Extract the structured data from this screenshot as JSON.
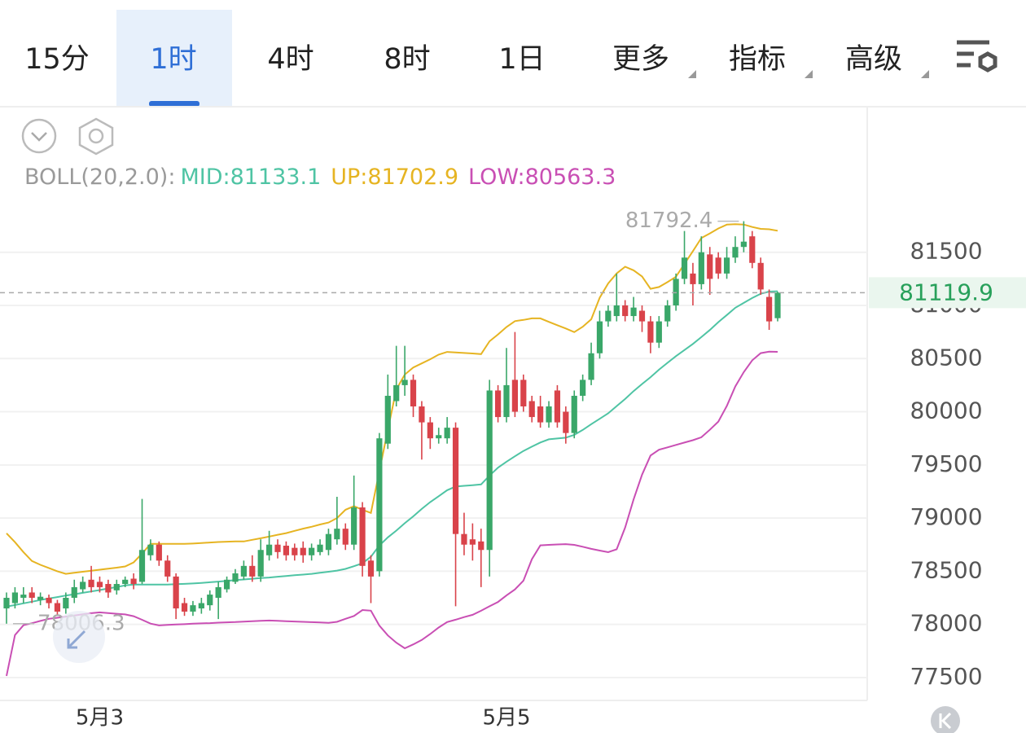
{
  "tabs": [
    {
      "label": "15分"
    },
    {
      "label": "1时",
      "active": true
    },
    {
      "label": "4时"
    },
    {
      "label": "8时"
    },
    {
      "label": "1日"
    },
    {
      "label": "更多",
      "dropdown": true
    },
    {
      "label": "指标",
      "dropdown": true
    },
    {
      "label": "高级",
      "dropdown": true
    }
  ],
  "chart_data": {
    "type": "candlestick",
    "indicator": "BOLL(20,2.0):",
    "up_color": "#3aa769",
    "down_color": "#d9434a",
    "grid": true,
    "ylim": [
      77300,
      81950
    ],
    "yticks": [
      77500,
      78000,
      78500,
      79000,
      79500,
      80000,
      80500,
      81000,
      81500
    ],
    "categories": [
      null,
      null,
      null,
      null,
      null,
      null,
      null,
      null,
      null,
      null,
      null,
      "5月3",
      null,
      null,
      null,
      null,
      null,
      null,
      null,
      null,
      null,
      null,
      null,
      null,
      null,
      null,
      null,
      null,
      null,
      null,
      null,
      null,
      null,
      null,
      null,
      null,
      null,
      null,
      null,
      null,
      null,
      null,
      null,
      null,
      null,
      null,
      null,
      null,
      null,
      null,
      null,
      null,
      null,
      null,
      null,
      null,
      null,
      null,
      null,
      "5月5",
      null,
      null,
      null,
      null,
      null,
      null,
      null,
      null,
      null,
      null,
      null,
      null,
      null,
      null,
      null,
      null,
      null,
      null,
      null,
      null,
      null,
      null,
      null,
      null,
      null,
      null,
      null,
      null,
      null,
      null,
      null,
      null
    ],
    "open": [
      78150,
      78200,
      78250,
      78300,
      78230,
      78250,
      78200,
      78150,
      78250,
      78330,
      78420,
      78400,
      78380,
      78320,
      78380,
      78430,
      78400,
      78650,
      78750,
      78600,
      78450,
      78200,
      78120,
      78150,
      78180,
      78250,
      78330,
      78400,
      78450,
      78550,
      78450,
      78650,
      78750,
      78740,
      78720,
      78720,
      78650,
      78680,
      78700,
      78800,
      78900,
      78750,
      79100,
      78600,
      78500,
      79700,
      80100,
      80250,
      80300,
      80050,
      79900,
      79750,
      79750,
      79850,
      78850,
      78800,
      78780,
      78700,
      80200,
      79950,
      80300,
      80300,
      80100,
      80050,
      79900,
      80200,
      80000,
      79800,
      80150,
      80300,
      80550,
      80850,
      80900,
      81000,
      80900,
      80950,
      80850,
      80650,
      80850,
      81000,
      81250,
      81300,
      81200,
      81480,
      81450,
      81300,
      81450,
      81550,
      81650,
      81400,
      81080,
      80880
    ],
    "high": [
      78300,
      78350,
      78350,
      78350,
      78300,
      78280,
      78230,
      78300,
      78420,
      78450,
      78550,
      78450,
      78420,
      78420,
      78450,
      78480,
      79180,
      78800,
      78780,
      78650,
      78480,
      78250,
      78220,
      78250,
      78320,
      78400,
      78450,
      78520,
      78600,
      78650,
      78800,
      78880,
      78800,
      78780,
      78760,
      78780,
      78760,
      78800,
      78900,
      79200,
      78950,
      79400,
      79150,
      78650,
      79800,
      80350,
      80620,
      80620,
      80350,
      80100,
      79950,
      79850,
      79950,
      79900,
      79050,
      78950,
      78900,
      80300,
      80250,
      80600,
      80750,
      80350,
      80150,
      80150,
      80100,
      80250,
      80050,
      80200,
      80350,
      80650,
      80950,
      81000,
      81300,
      81050,
      81080,
      81000,
      80900,
      80900,
      81050,
      81300,
      81700,
      81400,
      81650,
      81550,
      81500,
      81550,
      81650,
      81792.4,
      81700,
      81450,
      81150,
      81130
    ],
    "low": [
      78006.3,
      78150,
      78200,
      78200,
      78180,
      78150,
      78080,
      78100,
      78200,
      78300,
      78300,
      78300,
      78250,
      78280,
      78350,
      78330,
      78380,
      78600,
      78550,
      78400,
      78050,
      78080,
      78080,
      78100,
      78130,
      78050,
      78300,
      78380,
      78420,
      78400,
      78400,
      78600,
      78620,
      78600,
      78600,
      78580,
      78600,
      78650,
      78650,
      78750,
      78700,
      78700,
      78450,
      78200,
      78450,
      79650,
      80050,
      80150,
      79950,
      79550,
      79650,
      79700,
      79700,
      78170,
      78650,
      78600,
      78350,
      78450,
      79900,
      79900,
      79950,
      80000,
      79900,
      79850,
      79850,
      79850,
      79700,
      79750,
      80100,
      80250,
      80500,
      80800,
      80850,
      80850,
      80850,
      80750,
      80550,
      80600,
      80800,
      80950,
      81200,
      81000,
      81150,
      81100,
      81250,
      81250,
      81400,
      81500,
      81350,
      81100,
      80770,
      80850
    ],
    "close": [
      78250,
      78300,
      78280,
      78250,
      78260,
      78200,
      78120,
      78250,
      78350,
      78400,
      78350,
      78350,
      78300,
      78380,
      78420,
      78380,
      78700,
      78750,
      78600,
      78450,
      78150,
      78120,
      78180,
      78200,
      78280,
      78350,
      78420,
      78480,
      78550,
      78450,
      78700,
      78750,
      78680,
      78650,
      78650,
      78650,
      78720,
      78750,
      78850,
      78900,
      78750,
      79100,
      78550,
      78450,
      79750,
      80150,
      80250,
      80300,
      80050,
      79900,
      79750,
      79780,
      79850,
      78850,
      78750,
      78750,
      78700,
      80200,
      79950,
      80250,
      80000,
      80050,
      79950,
      79900,
      80050,
      79900,
      79800,
      80150,
      80300,
      80550,
      80850,
      80950,
      81000,
      80900,
      80980,
      80850,
      80650,
      80850,
      81000,
      81250,
      81450,
      81200,
      81500,
      81250,
      81300,
      81450,
      81550,
      81600,
      81400,
      81150,
      80850,
      81119.9
    ],
    "bands": [
      {
        "name": "MID:",
        "color": "#4fc4a4",
        "values": [
          78167,
          78182,
          78198,
          78213,
          78229,
          78244,
          78257,
          78271,
          78284,
          78297,
          78310,
          78323,
          78338,
          78351,
          78366,
          78374,
          78374,
          78374,
          78374,
          78374,
          78378,
          78381,
          78385,
          78390,
          78396,
          78402,
          78409,
          78416,
          78422,
          78429,
          78435,
          78441,
          78448,
          78455,
          78462,
          78468,
          78475,
          78486,
          78495,
          78506,
          78522,
          78547,
          78575,
          78636,
          78742,
          78818,
          78882,
          78952,
          79016,
          79086,
          79150,
          79205,
          79262,
          79296,
          79303,
          79309,
          79316,
          79400,
          79474,
          79530,
          79581,
          79631,
          79672,
          79711,
          79741,
          79748,
          79756,
          79783,
          79829,
          79883,
          79934,
          79985,
          80053,
          80120,
          80194,
          80261,
          80325,
          80396,
          80460,
          80523,
          80580,
          80638,
          80702,
          80769,
          80843,
          80910,
          80978,
          81024,
          81070,
          81110,
          81130,
          81133.1
        ]
      },
      {
        "name": "UP:",
        "color": "#e6b422",
        "values": [
          78857,
          78773,
          78680,
          78596,
          78560,
          78530,
          78500,
          78475,
          78485,
          78495,
          78505,
          78514,
          78524,
          78533,
          78545,
          78583,
          78666,
          78757,
          78757,
          78757,
          78757,
          78757,
          78760,
          78765,
          78770,
          78775,
          78778,
          78780,
          78780,
          78795,
          78810,
          78826,
          78843,
          78858,
          78880,
          78900,
          78918,
          78939,
          78958,
          79000,
          79078,
          79112,
          79078,
          79048,
          79440,
          79830,
          80210,
          80350,
          80416,
          80455,
          80494,
          80537,
          80563,
          80558,
          80553,
          80548,
          80542,
          80663,
          80727,
          80797,
          80852,
          80864,
          80878,
          80878,
          80845,
          80814,
          80783,
          80749,
          80799,
          80870,
          81073,
          81207,
          81301,
          81364,
          81330,
          81273,
          81156,
          81173,
          81219,
          81270,
          81390,
          81510,
          81634,
          81677,
          81724,
          81760,
          81764,
          81761,
          81738,
          81720,
          81716,
          81702.9
        ]
      },
      {
        "name": "LOW:",
        "color": "#c94fb4",
        "values": [
          77515,
          77900,
          77992,
          78011,
          78032,
          78052,
          78062,
          78073,
          78084,
          78095,
          78105,
          78113,
          78106,
          78100,
          78094,
          78077,
          78043,
          78007,
          77990,
          77995,
          77999,
          78002,
          78006,
          78009,
          78012,
          78016,
          78019,
          78022,
          78026,
          78030,
          78033,
          78036,
          78033,
          78030,
          78027,
          78024,
          78021,
          78018,
          78015,
          78024,
          78052,
          78079,
          78135,
          78129,
          77988,
          77896,
          77828,
          77775,
          77812,
          77853,
          77909,
          77970,
          78022,
          78044,
          78068,
          78090,
          78128,
          78170,
          78211,
          78272,
          78329,
          78411,
          78613,
          78743,
          78748,
          78752,
          78755,
          78748,
          78730,
          78710,
          78694,
          78679,
          78706,
          78910,
          79175,
          79408,
          79588,
          79643,
          79665,
          79688,
          79710,
          79732,
          79760,
          79830,
          79908,
          80055,
          80238,
          80373,
          80484,
          80551,
          80565,
          80563.3
        ]
      }
    ]
  }
}
